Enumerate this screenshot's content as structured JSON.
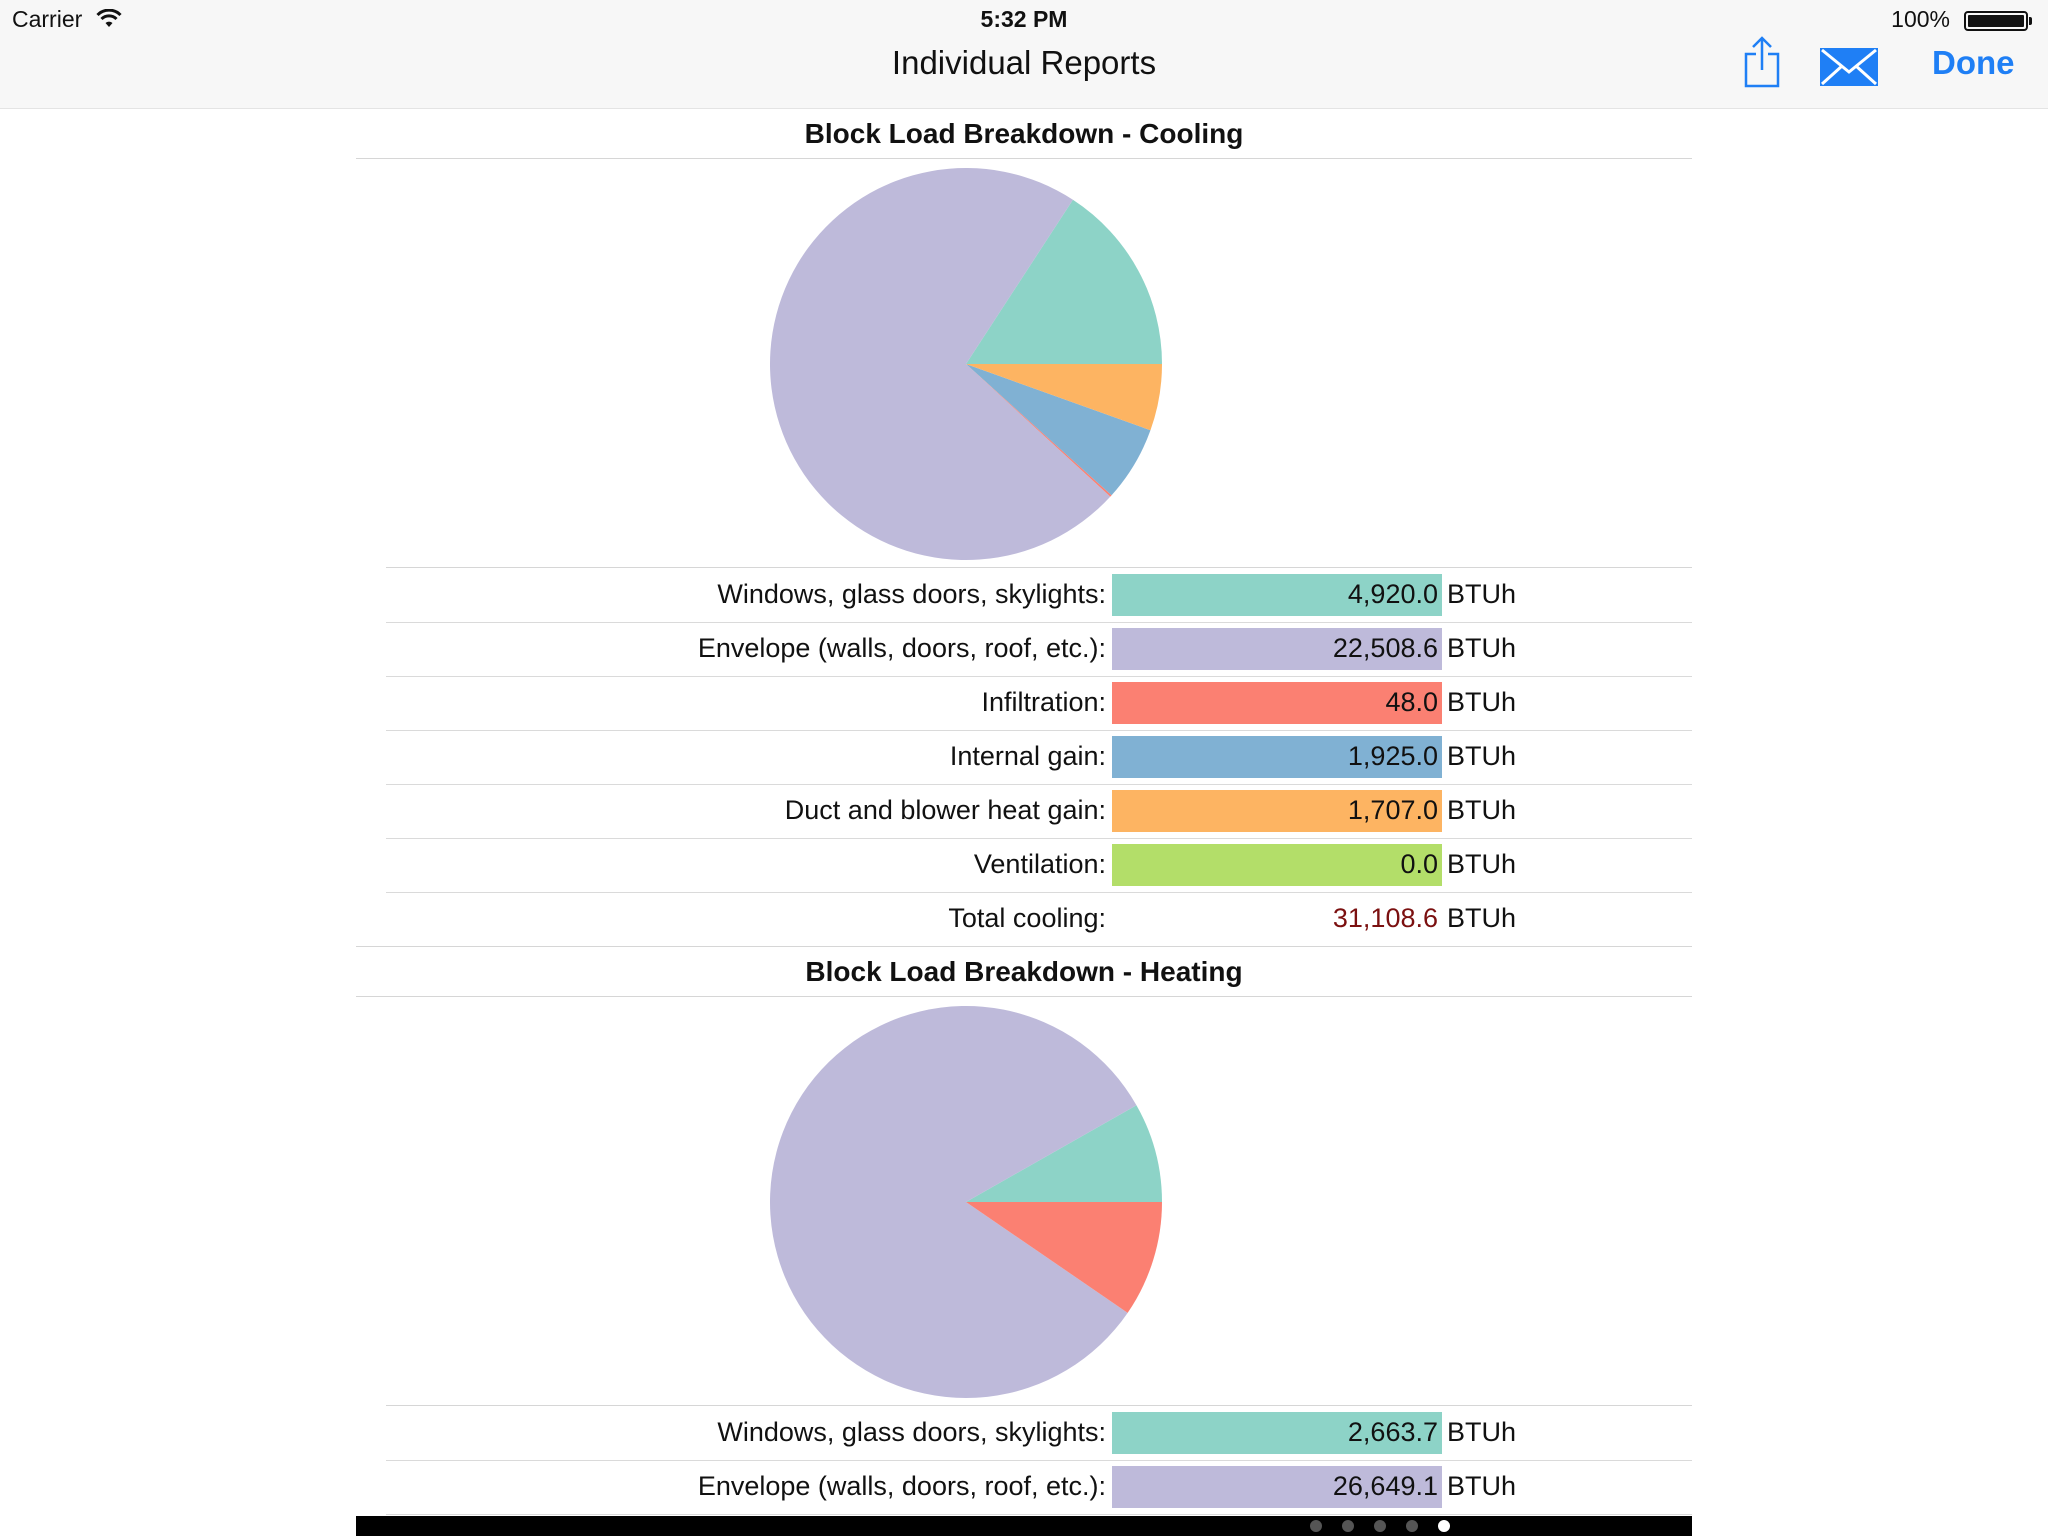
{
  "status_bar": {
    "carrier": "Carrier",
    "time": "5:32 PM",
    "battery": "100%"
  },
  "nav": {
    "title": "Individual Reports",
    "done_label": "Done"
  },
  "icons": {
    "share": "share-icon",
    "mail": "mail-icon",
    "wifi": "wifi-icon",
    "battery": "battery-icon"
  },
  "unit": "BTUh",
  "cooling": {
    "title": "Block Load Breakdown - Cooling",
    "rows": [
      {
        "label": "Windows, glass doors, skylights:",
        "value": "4,920.0",
        "color": "#8dd3c7"
      },
      {
        "label": "Envelope (walls, doors, roof, etc.):",
        "value": "22,508.6",
        "color": "#bebada"
      },
      {
        "label": "Infiltration:",
        "value": "48.0",
        "color": "#fb8072"
      },
      {
        "label": "Internal gain:",
        "value": "1,925.0",
        "color": "#80b1d3"
      },
      {
        "label": "Duct and blower heat gain:",
        "value": "1,707.0",
        "color": "#fdb462"
      },
      {
        "label": "Ventilation:",
        "value": "0.0",
        "color": "#b3de69"
      }
    ],
    "total": {
      "label": "Total cooling:",
      "value": "31,108.6",
      "color": "#7b1010"
    }
  },
  "heating": {
    "title": "Block Load Breakdown - Heating",
    "rows": [
      {
        "label": "Windows, glass doors, skylights:",
        "value": "2,663.7",
        "color": "#8dd3c7"
      },
      {
        "label": "Envelope (walls, doors, roof, etc.):",
        "value": "26,649.1",
        "color": "#bebada"
      }
    ]
  },
  "chart_data": [
    {
      "type": "pie",
      "title": "Block Load Breakdown - Cooling",
      "categories": [
        "Windows, glass doors, skylights",
        "Envelope (walls, doors, roof, etc.)",
        "Infiltration",
        "Internal gain",
        "Duct and blower heat gain",
        "Ventilation"
      ],
      "values": [
        4920.0,
        22508.6,
        48.0,
        1925.0,
        1707.0,
        0.0
      ],
      "colors": [
        "#8dd3c7",
        "#bebada",
        "#fb8072",
        "#80b1d3",
        "#fdb462",
        "#b3de69"
      ]
    },
    {
      "type": "pie",
      "title": "Block Load Breakdown - Heating",
      "categories": [
        "Windows, glass doors, skylights",
        "Envelope (walls, doors, roof, etc.)",
        "Infiltration"
      ],
      "values": [
        2663.7,
        26649.1,
        3100.0
      ],
      "colors": [
        "#8dd3c7",
        "#bebada",
        "#fb8072"
      ]
    }
  ],
  "pager": {
    "count": 5,
    "active": 4
  }
}
